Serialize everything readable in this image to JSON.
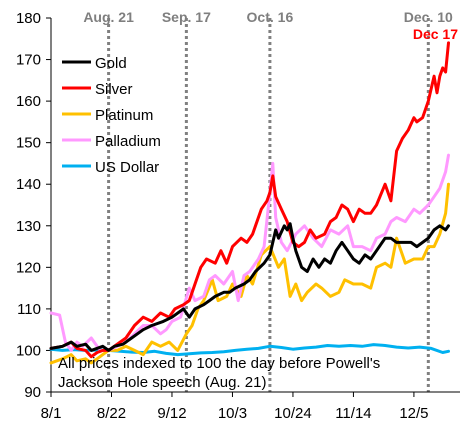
{
  "chart_data": {
    "type": "line",
    "ylim": [
      90,
      180
    ],
    "yticks": [
      90,
      100,
      110,
      120,
      130,
      140,
      150,
      160,
      170,
      180
    ],
    "x_start": "8/1",
    "x_end": "12/21",
    "xticks": [
      {
        "date": "8/1",
        "label": "8/1"
      },
      {
        "date": "8/22",
        "label": "8/22"
      },
      {
        "date": "9/12",
        "label": "9/12"
      },
      {
        "date": "10/3",
        "label": "10/3"
      },
      {
        "date": "10/24",
        "label": "10/24"
      },
      {
        "date": "11/14",
        "label": "11/14"
      },
      {
        "date": "12/5",
        "label": "12/5"
      }
    ],
    "vlines": [
      {
        "date": "8/21",
        "label": "Aug. 21",
        "color": "#808080"
      },
      {
        "date": "9/17",
        "label": "Sep. 17",
        "color": "#808080"
      },
      {
        "date": "10/16",
        "label": "Oct. 16",
        "color": "#808080"
      },
      {
        "date": "12/10",
        "label": "Dec. 10",
        "color": "#808080"
      }
    ],
    "end_label": {
      "text": "Dec 17",
      "color": "#ff0000"
    },
    "note": [
      "All prices indexed to 100 the day before Powell's",
      "Jackson Hole speech (Aug. 21)"
    ],
    "legend": {
      "position": "top-left"
    },
    "series": [
      {
        "name": "Gold",
        "color": "#000000",
        "points": [
          [
            "8/1",
            100.5
          ],
          [
            "8/5",
            101
          ],
          [
            "8/8",
            102
          ],
          [
            "8/10",
            101
          ],
          [
            "8/13",
            101.5
          ],
          [
            "8/15",
            100
          ],
          [
            "8/19",
            101
          ],
          [
            "8/21",
            100
          ],
          [
            "8/23",
            101
          ],
          [
            "8/26",
            101.5
          ],
          [
            "8/29",
            103
          ],
          [
            "9/2",
            105
          ],
          [
            "9/5",
            106
          ],
          [
            "9/9",
            107
          ],
          [
            "9/12",
            108
          ],
          [
            "9/16",
            110
          ],
          [
            "9/18",
            108
          ],
          [
            "9/20",
            110
          ],
          [
            "9/23",
            111
          ],
          [
            "9/25",
            112
          ],
          [
            "9/27",
            113
          ],
          [
            "9/30",
            114
          ],
          [
            "10/2",
            114
          ],
          [
            "10/4",
            115
          ],
          [
            "10/7",
            116
          ],
          [
            "10/9",
            117
          ],
          [
            "10/11",
            119
          ],
          [
            "10/14",
            121
          ],
          [
            "10/16",
            123
          ],
          [
            "10/18",
            129
          ],
          [
            "10/19",
            127
          ],
          [
            "10/21",
            130
          ],
          [
            "10/22",
            129
          ],
          [
            "10/23",
            130.5
          ],
          [
            "10/24",
            127
          ],
          [
            "10/25",
            124
          ],
          [
            "10/27",
            120
          ],
          [
            "10/29",
            119
          ],
          [
            "10/31",
            122
          ],
          [
            "11/2",
            120
          ],
          [
            "11/4",
            122
          ],
          [
            "11/6",
            121
          ],
          [
            "11/8",
            124
          ],
          [
            "11/10",
            126
          ],
          [
            "11/12",
            124
          ],
          [
            "11/14",
            122
          ],
          [
            "11/16",
            121
          ],
          [
            "11/18",
            123
          ],
          [
            "11/20",
            122
          ],
          [
            "11/22",
            124
          ],
          [
            "11/25",
            127
          ],
          [
            "11/27",
            127
          ],
          [
            "11/29",
            126
          ],
          [
            "12/2",
            126
          ],
          [
            "12/4",
            126
          ],
          [
            "12/6",
            125
          ],
          [
            "12/8",
            126
          ],
          [
            "12/10",
            127
          ],
          [
            "12/12",
            129
          ],
          [
            "12/14",
            130
          ],
          [
            "12/16",
            129
          ],
          [
            "12/17",
            130
          ]
        ]
      },
      {
        "name": "Silver",
        "color": "#ff0000",
        "points": [
          [
            "8/1",
            100.5
          ],
          [
            "8/5",
            101
          ],
          [
            "8/8",
            102
          ],
          [
            "8/10",
            100.5
          ],
          [
            "8/13",
            100
          ],
          [
            "8/15",
            98.5
          ],
          [
            "8/17",
            99.5
          ],
          [
            "8/19",
            100
          ],
          [
            "8/21",
            100
          ],
          [
            "8/24",
            101.5
          ],
          [
            "8/27",
            103
          ],
          [
            "8/30",
            106
          ],
          [
            "9/2",
            108
          ],
          [
            "9/5",
            107
          ],
          [
            "9/8",
            109
          ],
          [
            "9/11",
            108
          ],
          [
            "9/13",
            110
          ],
          [
            "9/16",
            111
          ],
          [
            "9/18",
            112
          ],
          [
            "9/20",
            116
          ],
          [
            "9/22",
            120
          ],
          [
            "9/24",
            122
          ],
          [
            "9/27",
            121
          ],
          [
            "9/29",
            124
          ],
          [
            "10/1",
            121
          ],
          [
            "10/3",
            125
          ],
          [
            "10/6",
            127
          ],
          [
            "10/8",
            126
          ],
          [
            "10/10",
            128
          ],
          [
            "10/13",
            134
          ],
          [
            "10/15",
            136
          ],
          [
            "10/16",
            138
          ],
          [
            "10/17",
            142
          ],
          [
            "10/18",
            137
          ],
          [
            "10/20",
            134
          ],
          [
            "10/22",
            131
          ],
          [
            "10/24",
            126
          ],
          [
            "10/26",
            125
          ],
          [
            "10/28",
            126
          ],
          [
            "10/30",
            129
          ],
          [
            "11/1",
            127
          ],
          [
            "11/4",
            128
          ],
          [
            "11/6",
            131
          ],
          [
            "11/8",
            132
          ],
          [
            "11/10",
            135
          ],
          [
            "11/12",
            134
          ],
          [
            "11/14",
            131
          ],
          [
            "11/16",
            134
          ],
          [
            "11/18",
            133
          ],
          [
            "11/20",
            133
          ],
          [
            "11/22",
            135
          ],
          [
            "11/25",
            140
          ],
          [
            "11/27",
            136
          ],
          [
            "11/29",
            148
          ],
          [
            "12/1",
            151
          ],
          [
            "12/3",
            153
          ],
          [
            "12/5",
            156
          ],
          [
            "12/6",
            155
          ],
          [
            "12/8",
            156
          ],
          [
            "12/10",
            160
          ],
          [
            "12/12",
            166
          ],
          [
            "12/13",
            162
          ],
          [
            "12/14",
            166
          ],
          [
            "12/15",
            168
          ],
          [
            "12/16",
            167
          ],
          [
            "12/17",
            174
          ]
        ]
      },
      {
        "name": "Platinum",
        "color": "#ffc000",
        "points": [
          [
            "8/1",
            97
          ],
          [
            "8/5",
            98
          ],
          [
            "8/8",
            99
          ],
          [
            "8/10",
            97.5
          ],
          [
            "8/13",
            98
          ],
          [
            "8/15",
            97
          ],
          [
            "8/17",
            98
          ],
          [
            "8/19",
            99
          ],
          [
            "8/21",
            100
          ],
          [
            "8/24",
            100
          ],
          [
            "8/27",
            101
          ],
          [
            "8/30",
            100
          ],
          [
            "9/2",
            99
          ],
          [
            "9/5",
            102
          ],
          [
            "9/8",
            101
          ],
          [
            "9/11",
            102
          ],
          [
            "9/14",
            100
          ],
          [
            "9/17",
            104
          ],
          [
            "9/19",
            106
          ],
          [
            "9/21",
            110
          ],
          [
            "9/23",
            112
          ],
          [
            "9/26",
            117
          ],
          [
            "9/28",
            112
          ],
          [
            "10/1",
            113
          ],
          [
            "10/3",
            116
          ],
          [
            "10/6",
            113
          ],
          [
            "10/8",
            118
          ],
          [
            "10/10",
            116
          ],
          [
            "10/13",
            123
          ],
          [
            "10/16",
            125
          ],
          [
            "10/19",
            120
          ],
          [
            "10/21",
            122
          ],
          [
            "10/23",
            113
          ],
          [
            "10/25",
            116
          ],
          [
            "10/27",
            112
          ],
          [
            "10/29",
            114
          ],
          [
            "11/1",
            116
          ],
          [
            "11/3",
            115
          ],
          [
            "11/6",
            113
          ],
          [
            "11/9",
            114
          ],
          [
            "11/11",
            117
          ],
          [
            "11/14",
            116
          ],
          [
            "11/17",
            116
          ],
          [
            "11/20",
            115
          ],
          [
            "11/22",
            120
          ],
          [
            "11/25",
            121
          ],
          [
            "11/27",
            120
          ],
          [
            "11/29",
            127
          ],
          [
            "12/2",
            121
          ],
          [
            "12/5",
            122
          ],
          [
            "12/8",
            122
          ],
          [
            "12/10",
            125
          ],
          [
            "12/12",
            125
          ],
          [
            "12/14",
            128
          ],
          [
            "12/16",
            133
          ],
          [
            "12/17",
            140
          ]
        ]
      },
      {
        "name": "Palladium",
        "color": "#ff99ff",
        "points": [
          [
            "8/1",
            109
          ],
          [
            "8/4",
            108.5
          ],
          [
            "8/6",
            102
          ],
          [
            "8/8",
            100
          ],
          [
            "8/10",
            102
          ],
          [
            "8/12",
            101
          ],
          [
            "8/15",
            103
          ],
          [
            "8/18",
            100
          ],
          [
            "8/21",
            100
          ],
          [
            "8/24",
            101
          ],
          [
            "8/27",
            102
          ],
          [
            "8/30",
            104
          ],
          [
            "9/2",
            106
          ],
          [
            "9/5",
            106
          ],
          [
            "9/8",
            104
          ],
          [
            "9/10",
            105
          ],
          [
            "9/12",
            107
          ],
          [
            "9/15",
            108
          ],
          [
            "9/18",
            115
          ],
          [
            "9/20",
            112
          ],
          [
            "9/23",
            113
          ],
          [
            "9/25",
            117
          ],
          [
            "9/27",
            118
          ],
          [
            "9/30",
            116
          ],
          [
            "10/3",
            119
          ],
          [
            "10/5",
            112
          ],
          [
            "10/7",
            118
          ],
          [
            "10/9",
            119
          ],
          [
            "10/12",
            122
          ],
          [
            "10/14",
            125
          ],
          [
            "10/16",
            138
          ],
          [
            "10/17",
            145
          ],
          [
            "10/18",
            132
          ],
          [
            "10/20",
            126
          ],
          [
            "10/22",
            124
          ],
          [
            "10/25",
            128
          ],
          [
            "10/28",
            130
          ],
          [
            "10/31",
            127
          ],
          [
            "11/3",
            125
          ],
          [
            "11/6",
            129
          ],
          [
            "11/9",
            128
          ],
          [
            "11/12",
            130
          ],
          [
            "11/14",
            125
          ],
          [
            "11/17",
            125
          ],
          [
            "11/20",
            124
          ],
          [
            "11/22",
            127
          ],
          [
            "11/25",
            128
          ],
          [
            "11/27",
            131
          ],
          [
            "11/29",
            132
          ],
          [
            "12/2",
            131
          ],
          [
            "12/5",
            134
          ],
          [
            "12/7",
            133
          ],
          [
            "12/10",
            135
          ],
          [
            "12/12",
            137
          ],
          [
            "12/14",
            139
          ],
          [
            "12/16",
            143
          ],
          [
            "12/17",
            147
          ]
        ]
      },
      {
        "name": "US Dollar",
        "color": "#00b0f0",
        "points": [
          [
            "8/1",
            100.3
          ],
          [
            "8/5",
            100
          ],
          [
            "8/9",
            100.2
          ],
          [
            "8/13",
            100
          ],
          [
            "8/17",
            100.1
          ],
          [
            "8/21",
            100
          ],
          [
            "8/25",
            99.8
          ],
          [
            "8/29",
            99.6
          ],
          [
            "9/2",
            99.5
          ],
          [
            "9/6",
            99.8
          ],
          [
            "9/10",
            99.3
          ],
          [
            "9/14",
            99
          ],
          [
            "9/18",
            99.2
          ],
          [
            "9/22",
            99.4
          ],
          [
            "9/26",
            99.5
          ],
          [
            "9/30",
            99.7
          ],
          [
            "10/4",
            100
          ],
          [
            "10/8",
            100.3
          ],
          [
            "10/12",
            100.5
          ],
          [
            "10/16",
            101
          ],
          [
            "10/20",
            100.7
          ],
          [
            "10/24",
            100.3
          ],
          [
            "10/28",
            100.6
          ],
          [
            "11/1",
            100.8
          ],
          [
            "11/5",
            101.2
          ],
          [
            "11/9",
            101
          ],
          [
            "11/13",
            101.2
          ],
          [
            "11/17",
            101
          ],
          [
            "11/21",
            101.4
          ],
          [
            "11/25",
            101.2
          ],
          [
            "11/29",
            100.8
          ],
          [
            "12/3",
            100.6
          ],
          [
            "12/7",
            100.8
          ],
          [
            "12/11",
            100.5
          ],
          [
            "12/15",
            99.5
          ],
          [
            "12/17",
            99.8
          ]
        ]
      }
    ]
  }
}
